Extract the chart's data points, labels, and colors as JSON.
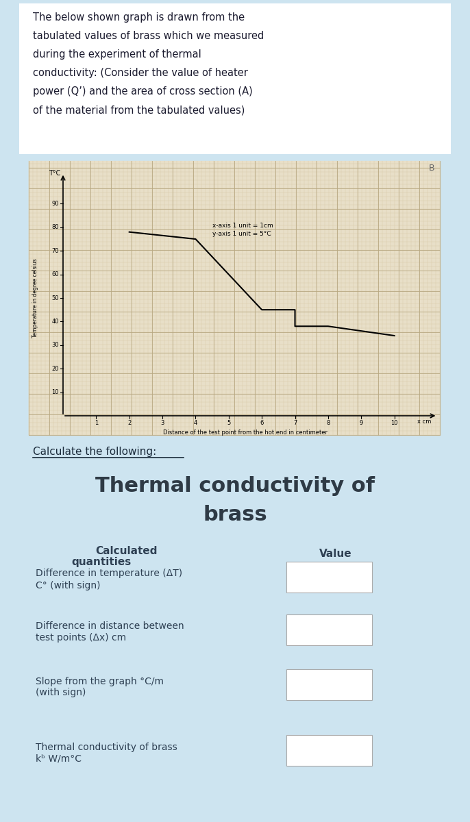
{
  "bg_color": "#cde4f0",
  "card_color": "#ffffff",
  "graph_bg": "#e8dfc8",
  "text_color": "#2e4053",
  "title_text": [
    "The below shown graph is drawn from the",
    "tabulated values of brass which we measured",
    "during the experiment of thermal",
    "conductivity: (Consider the value of heater",
    "power (Q’) and the area of cross section (A)",
    "of the material from the tabulated values)"
  ],
  "graph_x_label": "Distance of the test point from the hot end in centimeter",
  "graph_y_label": "Temperature in degree celsius",
  "graph_legend": "x-axis 1 unit = 1cm\ny-axis 1 unit = 5°C",
  "graph_yticks": [
    10,
    20,
    30,
    40,
    50,
    60,
    70,
    80,
    90
  ],
  "graph_xticks": [
    1,
    2,
    3,
    4,
    5,
    6,
    7,
    8,
    9,
    10
  ],
  "line_x": [
    2,
    4,
    6,
    7,
    7,
    8,
    10
  ],
  "line_y": [
    78,
    75,
    45,
    45,
    38,
    38,
    34
  ],
  "calc_title": "Calculate the following:",
  "section_title_line1": "Thermal conductivity of",
  "section_title_line2": "brass",
  "table_col1_header_line1": "Calculated",
  "table_col1_header_line2": "quantities",
  "table_col2_header": "Value",
  "table_rows": [
    "Difference in temperature (ΔT)\nC° (with sign)",
    "Difference in distance between\ntest points (Δx) cm",
    "Slope from the graph °C/m\n(with sign)",
    "Thermal conductivity of brass\nkᵇ W/m°C"
  ]
}
